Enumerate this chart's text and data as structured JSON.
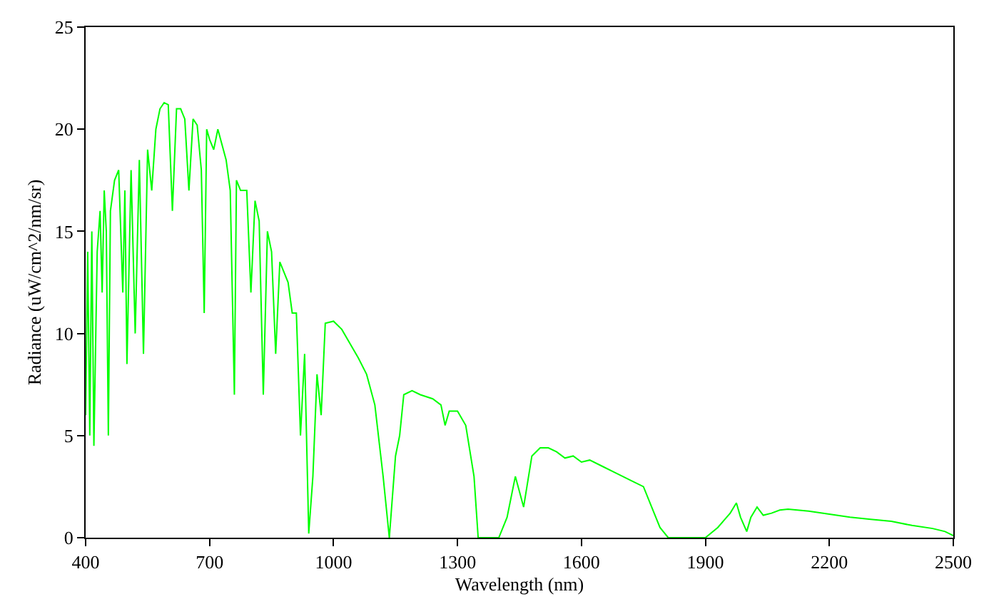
{
  "chart_data": {
    "type": "line",
    "xlabel": "Wavelength (nm)",
    "ylabel": "Radiance (uW/cm^2/nm/sr)",
    "xlim": [
      400,
      2500
    ],
    "xticks": [
      400,
      700,
      1000,
      1300,
      1600,
      1900,
      2200,
      2500
    ],
    "ylim": [
      0,
      25
    ],
    "yticks": [
      0,
      5,
      10,
      15,
      20,
      25
    ],
    "marker": "none",
    "line_style": "solid",
    "series": [
      {
        "color": "#00ff00",
        "x": [
          400,
          405,
          410,
          415,
          420,
          428,
          435,
          440,
          445,
          450,
          455,
          460,
          470,
          480,
          490,
          495,
          500,
          510,
          520,
          530,
          540,
          550,
          560,
          570,
          580,
          590,
          600,
          610,
          620,
          630,
          640,
          650,
          660,
          670,
          680,
          687,
          693,
          700,
          710,
          720,
          740,
          750,
          760,
          765,
          775,
          790,
          800,
          810,
          820,
          830,
          840,
          850,
          860,
          870,
          880,
          890,
          900,
          910,
          920,
          930,
          940,
          950,
          960,
          970,
          980,
          1000,
          1020,
          1040,
          1060,
          1080,
          1100,
          1120,
          1135,
          1150,
          1160,
          1170,
          1190,
          1210,
          1240,
          1260,
          1270,
          1280,
          1300,
          1320,
          1340,
          1350,
          1360,
          1400,
          1420,
          1440,
          1460,
          1480,
          1500,
          1520,
          1540,
          1560,
          1580,
          1600,
          1620,
          1650,
          1680,
          1720,
          1750,
          1770,
          1790,
          1810,
          1850,
          1900,
          1930,
          1960,
          1975,
          1985,
          2000,
          2010,
          2025,
          2040,
          2060,
          2080,
          2100,
          2150,
          2200,
          2250,
          2300,
          2350,
          2400,
          2450,
          2480,
          2500
        ],
        "values": [
          6,
          14,
          5,
          15,
          4.5,
          14,
          16,
          12,
          17,
          15,
          5,
          16,
          17.5,
          18,
          12,
          17,
          8.5,
          18,
          10,
          18.5,
          9,
          19,
          17,
          20,
          21,
          21.3,
          21.2,
          16,
          21,
          21,
          20.5,
          17,
          20.5,
          20.2,
          18,
          11,
          20,
          19.5,
          19,
          20,
          18.5,
          17,
          7,
          17.5,
          17,
          17,
          12,
          16.5,
          15.5,
          7,
          15,
          14,
          9,
          13.5,
          13,
          12.5,
          11,
          11,
          5,
          9,
          0.2,
          3,
          8,
          6,
          10.5,
          10.6,
          10.2,
          9.5,
          8.8,
          8,
          6.5,
          3,
          0,
          4,
          5,
          7,
          7.2,
          7,
          6.8,
          6.5,
          5.5,
          6.2,
          6.2,
          5.5,
          3,
          0,
          0,
          0,
          1,
          3,
          1.5,
          4,
          4.4,
          4.4,
          4.2,
          3.9,
          4,
          3.7,
          3.8,
          3.5,
          3.2,
          2.8,
          2.5,
          1.5,
          0.5,
          0,
          0,
          0,
          0.5,
          1.2,
          1.7,
          1,
          0.3,
          1,
          1.5,
          1.1,
          1.2,
          1.35,
          1.4,
          1.3,
          1.15,
          1.0,
          0.9,
          0.8,
          0.6,
          0.45,
          0.3,
          0.1
        ]
      }
    ]
  }
}
